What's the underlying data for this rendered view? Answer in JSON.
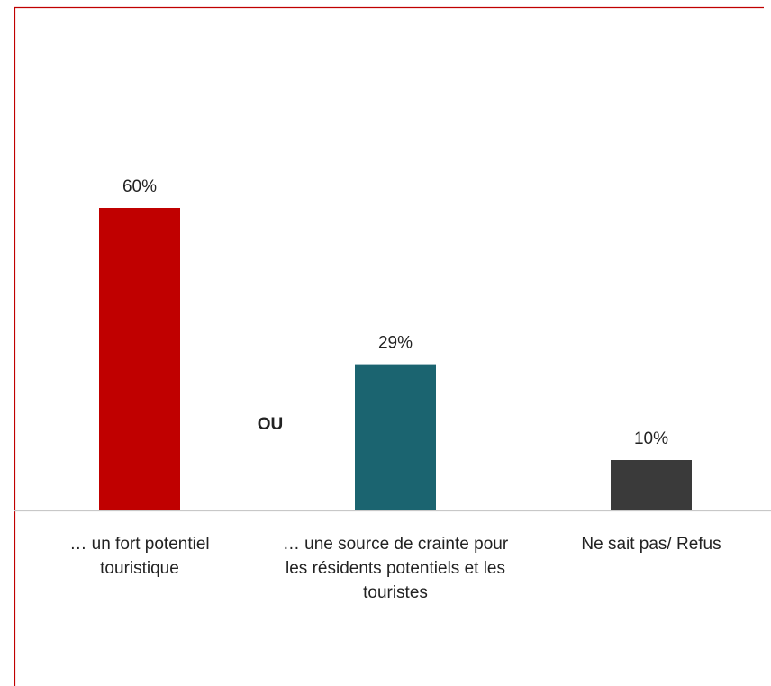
{
  "chart_data": {
    "type": "bar",
    "categories": [
      "… un fort potentiel touristique",
      "… une source de crainte pour les résidents potentiels et les touristes",
      "Ne sait pas/ Refus"
    ],
    "values": [
      60,
      29,
      10
    ],
    "value_labels": [
      "60%",
      "29%",
      "10%"
    ],
    "colors": [
      "#c00000",
      "#1b6470",
      "#3a3a3a"
    ],
    "ylim": [
      0,
      100
    ],
    "annotations": [
      "OU"
    ]
  }
}
